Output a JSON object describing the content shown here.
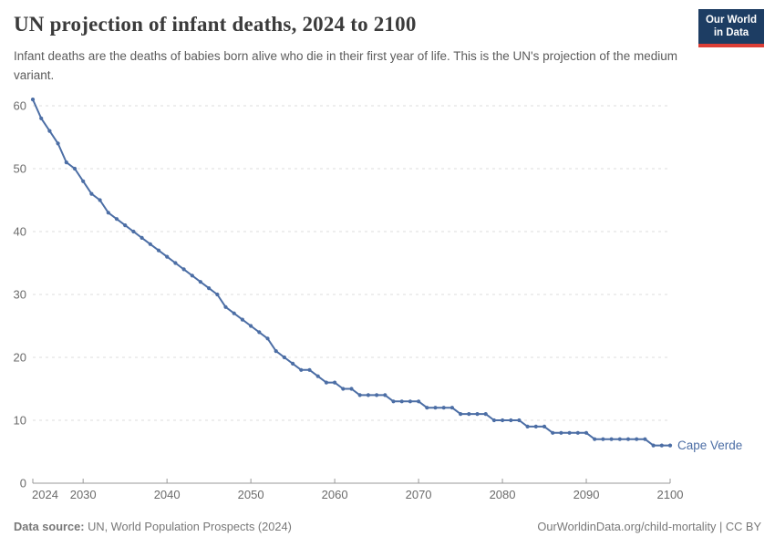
{
  "header": {
    "title": "UN projection of infant deaths, 2024 to 2100",
    "subtitle": "Infant deaths are the deaths of babies born alive who die in their first year of life. This is the UN's projection of the medium variant.",
    "logo": {
      "line1": "Our World",
      "line2": "in Data",
      "bg_color": "#1d3d63",
      "bar_color": "#dc3e36"
    }
  },
  "chart_data": {
    "type": "line",
    "title": "UN projection of infant deaths, 2024 to 2100",
    "xlabel": "",
    "ylabel": "",
    "xlim": [
      2024,
      2100
    ],
    "ylim": [
      0,
      62
    ],
    "x_ticks": [
      2024,
      2030,
      2040,
      2050,
      2060,
      2070,
      2080,
      2090,
      2100
    ],
    "y_ticks": [
      0,
      10,
      20,
      30,
      40,
      50,
      60
    ],
    "grid": "horizontal-dashed",
    "legend_position": "end-of-line-label",
    "series": [
      {
        "name": "Cape Verde",
        "color": "#4C6EA5",
        "x_start": 2024,
        "x_end": 2100,
        "x_step": 1,
        "values": [
          61,
          58,
          56,
          54,
          51,
          50,
          48,
          46,
          45,
          43,
          42,
          41,
          40,
          39,
          38,
          37,
          36,
          35,
          34,
          33,
          32,
          31,
          30,
          28,
          27,
          26,
          25,
          24,
          23,
          21,
          20,
          19,
          18,
          18,
          17,
          16,
          16,
          15,
          15,
          14,
          14,
          14,
          14,
          13,
          13,
          13,
          13,
          12,
          12,
          12,
          12,
          11,
          11,
          11,
          11,
          10,
          10,
          10,
          10,
          9,
          9,
          9,
          8,
          8,
          8,
          8,
          8,
          7,
          7,
          7,
          7,
          7,
          7,
          7,
          6,
          6,
          6
        ]
      }
    ],
    "colors": {
      "gridline": "#dedede",
      "axis_line": "#999999",
      "tick_label": "#6b6b6b"
    }
  },
  "footer": {
    "source_label": "Data source:",
    "source_text": " UN, World Population Prospects (2024)",
    "credit": "OurWorldinData.org/child-mortality | CC BY"
  }
}
